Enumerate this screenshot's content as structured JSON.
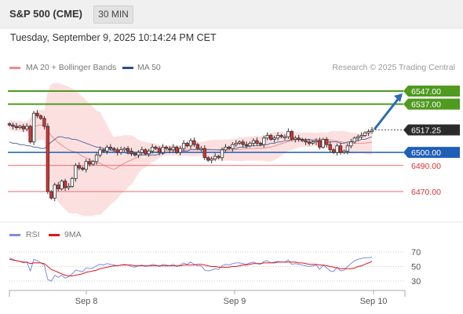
{
  "header": {
    "title": "S&P 500 (CME)",
    "timeframe": "30 MIN"
  },
  "datetime": "Tuesday, September 9, 2025 10:14:24 PM CET",
  "attribution": "Research © 2025 Trading Central",
  "colors": {
    "up_candle": "#e03030",
    "down_candle": "#e03030",
    "resistance": "#4f9a1f",
    "support_blue": "#1f5fb5",
    "support_red": "#e56b6b",
    "ma50": "#5d6fa0",
    "bollinger_fill": "#fbd5d5",
    "rsi": "#7b8fe0",
    "rsi_ma": "#e01818",
    "arrow": "#2a6cb5"
  },
  "chart_data": [
    {
      "type": "candlestick",
      "title": "S&P 500 (CME)",
      "legend": [
        {
          "name": "MA 20 + Bollinger Bands",
          "color": "#f08c8c"
        },
        {
          "name": "MA 50",
          "color": "#2b4f8a"
        }
      ],
      "x_tick_labels": [
        "Sep 8",
        "Sep 9",
        "Sep 10"
      ],
      "ylim": [
        6455,
        6560
      ],
      "last_price": 6517.25,
      "levels": [
        {
          "value": 6547.0,
          "label": "6547.00",
          "kind": "resistance"
        },
        {
          "value": 6537.0,
          "label": "6537.00",
          "kind": "resistance"
        },
        {
          "value": 6517.25,
          "label": "6517.25",
          "kind": "last"
        },
        {
          "value": 6500.0,
          "label": "6500.00",
          "kind": "pivot"
        },
        {
          "value": 6490.0,
          "label": "6490.00",
          "kind": "support"
        },
        {
          "value": 6470.0,
          "label": "6470.00",
          "kind": "support"
        }
      ],
      "series_close": [
        6521,
        6520,
        6519,
        6520,
        6518,
        6520,
        6508,
        6530,
        6528,
        6526,
        6520,
        6470,
        6465,
        6475,
        6472,
        6478,
        6473,
        6474,
        6480,
        6490,
        6488,
        6487,
        6493,
        6491,
        6493,
        6498,
        6502,
        6501,
        6504,
        6503,
        6502,
        6500,
        6502,
        6503,
        6501,
        6499,
        6498,
        6500,
        6502,
        6499,
        6501,
        6504,
        6503,
        6500,
        6504,
        6503,
        6502,
        6504,
        6500,
        6503,
        6507,
        6505,
        6509,
        6506,
        6503,
        6503,
        6496,
        6494,
        6495,
        6497,
        6496,
        6502,
        6504,
        6503,
        6506,
        6507,
        6508,
        6506,
        6505,
        6507,
        6509,
        6507,
        6506,
        6511,
        6513,
        6510,
        6511,
        6513,
        6512,
        6512,
        6516,
        6510,
        6511,
        6510,
        6509,
        6508,
        6507,
        6508,
        6509,
        6504,
        6510,
        6506,
        6502,
        6500,
        6505,
        6500,
        6501,
        6505,
        6508,
        6511,
        6512,
        6513,
        6515,
        6516,
        6517
      ],
      "ma50": [
        6508,
        6507,
        6507,
        6506,
        6506,
        6505,
        6505,
        6504,
        6504,
        6503,
        6503,
        6505,
        6508,
        6510,
        6512,
        6512,
        6511,
        6511,
        6510,
        6510,
        6509,
        6508,
        6507,
        6506,
        6505,
        6504,
        6504,
        6503,
        6503,
        6502,
        6501,
        6501,
        6500,
        6500,
        6499,
        6499,
        6499,
        6499,
        6498,
        6498,
        6498,
        6498,
        6498,
        6499,
        6499,
        6500,
        6500,
        6500,
        6500,
        6501,
        6501,
        6501,
        6502,
        6502,
        6502,
        6502,
        6502,
        6502,
        6502,
        6502,
        6502,
        6502,
        6503,
        6503,
        6503,
        6503,
        6504,
        6504,
        6504,
        6505,
        6505,
        6505,
        6505,
        6506,
        6506,
        6507,
        6507,
        6508,
        6508,
        6509,
        6509,
        6510,
        6510,
        6510,
        6510,
        6510,
        6510,
        6509,
        6509,
        6509,
        6509,
        6508,
        6508,
        6508,
        6508,
        6507,
        6507,
        6508,
        6508,
        6509,
        6509,
        6510,
        6510,
        6511,
        6512
      ]
    },
    {
      "type": "line",
      "title": "RSI",
      "series": [
        {
          "name": "RSI",
          "values": [
            62,
            60,
            58,
            57,
            55,
            56,
            44,
            60,
            58,
            55,
            52,
            32,
            30,
            38,
            35,
            38,
            34,
            36,
            40,
            45,
            44,
            43,
            48,
            47,
            48,
            51,
            53,
            52,
            54,
            53,
            52,
            51,
            52,
            53,
            52,
            50,
            49,
            51,
            52,
            50,
            51,
            53,
            52,
            50,
            53,
            52,
            51,
            53,
            50,
            52,
            55,
            53,
            56,
            53,
            51,
            51,
            45,
            44,
            45,
            47,
            46,
            51,
            53,
            52,
            54,
            55,
            55,
            54,
            53,
            55,
            56,
            54,
            53,
            57,
            58,
            55,
            56,
            57,
            56,
            56,
            59,
            53,
            54,
            53,
            52,
            51,
            50,
            51,
            52,
            46,
            52,
            48,
            44,
            43,
            49,
            44,
            45,
            50,
            54,
            58,
            60,
            61,
            62,
            62,
            63
          ]
        },
        {
          "name": "9MA",
          "values": [
            60,
            59,
            58,
            57,
            56,
            56,
            54,
            55,
            55,
            55,
            54,
            50,
            46,
            44,
            42,
            40,
            38,
            37,
            37,
            38,
            39,
            40,
            42,
            43,
            44,
            45,
            47,
            48,
            49,
            50,
            51,
            51,
            52,
            52,
            52,
            52,
            51,
            51,
            51,
            51,
            51,
            51,
            51,
            51,
            51,
            51,
            51,
            51,
            51,
            51,
            52,
            52,
            52,
            52,
            53,
            53,
            52,
            51,
            50,
            50,
            49,
            49,
            49,
            49,
            50,
            50,
            51,
            52,
            52,
            53,
            54,
            54,
            54,
            55,
            55,
            55,
            55,
            56,
            56,
            56,
            56,
            56,
            56,
            55,
            55,
            54,
            53,
            53,
            53,
            52,
            52,
            51,
            50,
            49,
            48,
            47,
            47,
            47,
            47,
            48,
            50,
            51,
            53,
            55,
            57
          ]
        }
      ],
      "ylim": [
        20,
        80
      ],
      "y_tick_labels": [
        "70",
        "50",
        "30"
      ],
      "reference_lines": [
        70,
        50,
        30
      ]
    }
  ]
}
